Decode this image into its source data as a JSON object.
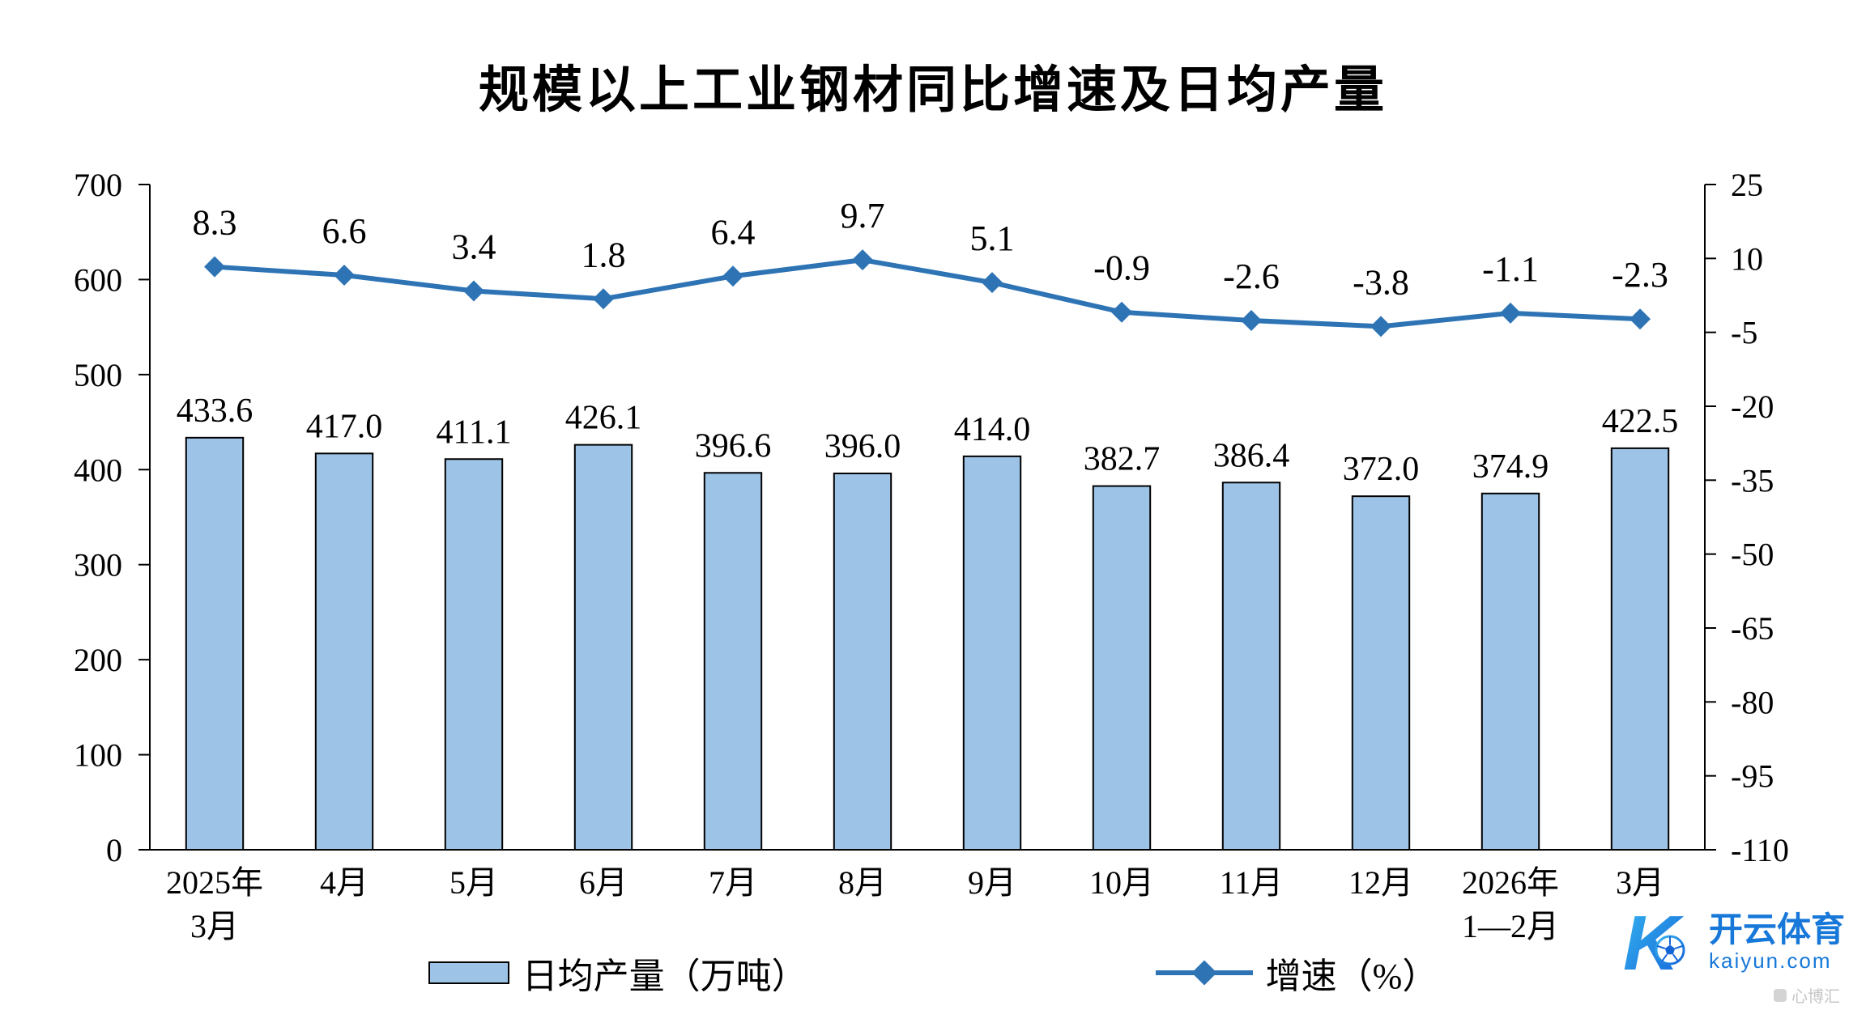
{
  "chart_data": {
    "type": "bar",
    "title": "规模以上工业钢材同比增速及日均产量",
    "categories": [
      [
        "2025年",
        "3月"
      ],
      [
        "4月"
      ],
      [
        "5月"
      ],
      [
        "6月"
      ],
      [
        "7月"
      ],
      [
        "8月"
      ],
      [
        "9月"
      ],
      [
        "10月"
      ],
      [
        "11月"
      ],
      [
        "12月"
      ],
      [
        "2026年",
        "1—2月"
      ],
      [
        "3月"
      ]
    ],
    "series": [
      {
        "name": "日均产量（万吨）",
        "type": "bar",
        "axis": "left",
        "values": [
          433.6,
          417.0,
          411.1,
          426.1,
          396.6,
          396.0,
          414.0,
          382.7,
          386.4,
          372.0,
          374.9,
          422.5
        ],
        "fill": "#9DC3E6",
        "stroke": "#000000"
      },
      {
        "name": "增速（%）",
        "type": "line",
        "axis": "right",
        "values": [
          8.3,
          6.6,
          3.4,
          1.8,
          6.4,
          9.7,
          5.1,
          -0.9,
          -2.6,
          -3.8,
          -1.1,
          -2.3
        ],
        "color": "#2E74B5"
      }
    ],
    "left_axis": {
      "min": 0,
      "max": 700,
      "step": 100,
      "ticks": [
        700,
        600,
        500,
        400,
        300,
        200,
        100,
        0
      ]
    },
    "right_axis": {
      "min": -110,
      "max": 25,
      "step": 15,
      "ticks": [
        25,
        10,
        -5,
        -20,
        -35,
        -50,
        -65,
        -80,
        -95,
        -110
      ]
    },
    "grid": false,
    "legend_position": "bottom"
  },
  "legend": {
    "bar_label": "日均产量（万吨）",
    "line_label": "增速（%）"
  },
  "watermark": {
    "brand": "开云体育",
    "domain": "kaiyun.com",
    "sub": "心博汇",
    "logo_letter": "K"
  }
}
